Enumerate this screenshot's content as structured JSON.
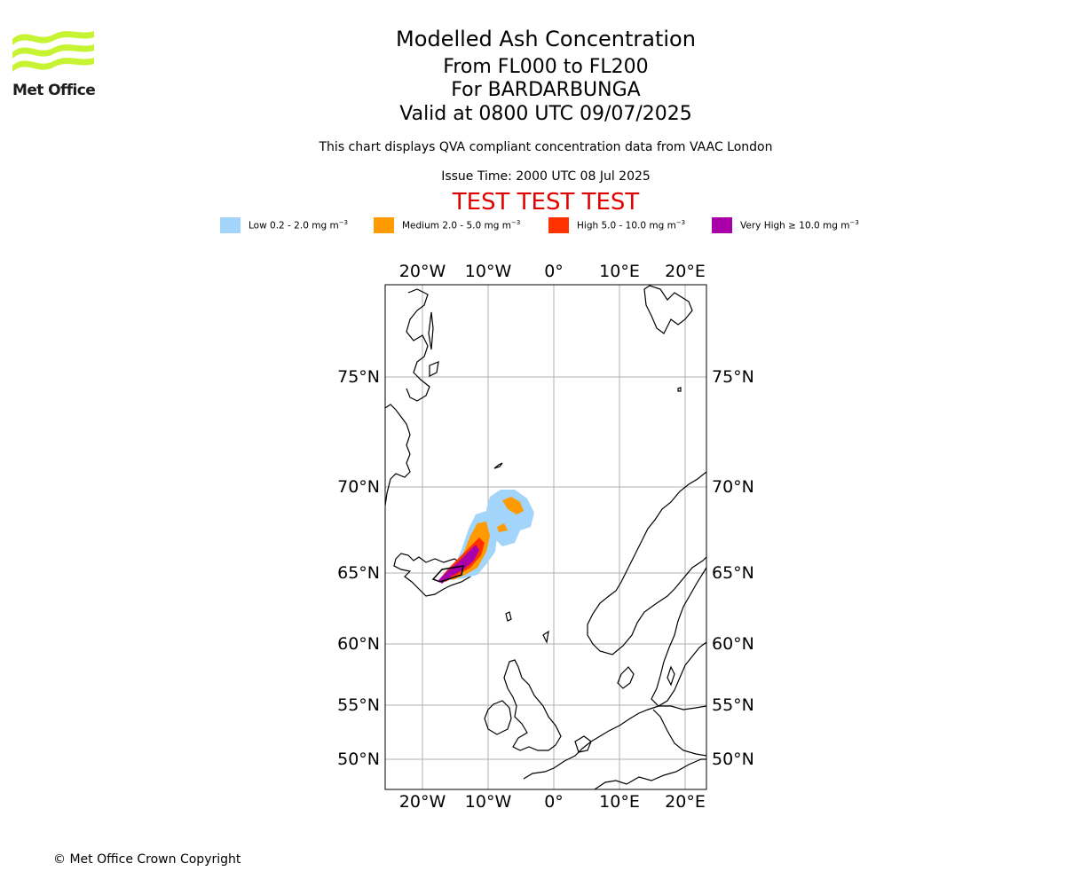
{
  "logo": {
    "text": "Met Office",
    "color": "#c6f432"
  },
  "header": {
    "title": "Modelled Ash Concentration",
    "range": "From FL000 to FL200",
    "volcano": "For BARDARBUNGA",
    "valid": "Valid at 0800 UTC 09/07/2025",
    "compliance": "This chart displays QVA compliant concentration data from VAAC London",
    "issue": "Issue Time: 2000 UTC 08 Jul 2025",
    "test_banner": "TEST TEST TEST"
  },
  "legend": [
    {
      "key": "low",
      "label": "Low 0.2 - 2.0 mg m",
      "color": "#a3d4fa"
    },
    {
      "key": "medium",
      "label": "Medium 2.0 - 5.0 mg m",
      "color": "#ff9a00"
    },
    {
      "key": "high",
      "label": "High 5.0 - 10.0 mg m",
      "color": "#ff3200"
    },
    {
      "key": "very_high",
      "label": "Very High ≥ 10.0 mg m",
      "color": "#aa00aa"
    }
  ],
  "legend_exponent": "−3",
  "map": {
    "lon_ticks": [
      "20°W",
      "10°W",
      "0°",
      "10°E",
      "20°E"
    ],
    "lat_ticks": [
      "75°N",
      "70°N",
      "65°N",
      "60°N",
      "55°N",
      "50°N"
    ],
    "gridlines": true
  },
  "footer": {
    "copyright": "© Met Office Crown Copyright"
  }
}
